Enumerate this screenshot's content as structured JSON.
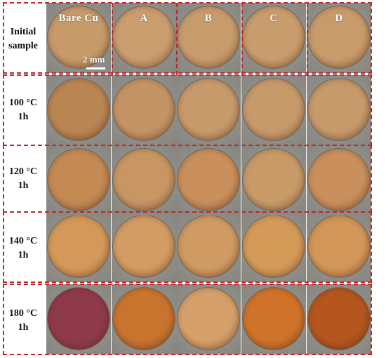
{
  "columns": [
    "Bare Cu",
    "A",
    "B",
    "C",
    "D"
  ],
  "rows": [
    {
      "line1": "Initial",
      "line2": "sample"
    },
    {
      "line1": "100 °C",
      "line2": "1h"
    },
    {
      "line1": "120 °C",
      "line2": "1h"
    },
    {
      "line1": "140 °C",
      "line2": "1h"
    },
    {
      "line1": "180 °C",
      "line2": "1h"
    }
  ],
  "scale_bar": {
    "label": "2 mm"
  },
  "colors": {
    "frame_dash": "#c0262a",
    "background_grey": "#8f8e8a",
    "copper_tones": [
      [
        "#c79a6a",
        "#c99d6e",
        "#c79b6c",
        "#c89c6c",
        "#c89b6b"
      ],
      [
        "#b98653",
        "#c49466",
        "#c79a6b",
        "#c69a6b",
        "#c69a6b"
      ],
      [
        "#c48a54",
        "#c79663",
        "#c98f5c",
        "#c89a68",
        "#c98f5c"
      ],
      [
        "#d4995a",
        "#d29c63",
        "#d09a63",
        "#d49a58",
        "#d29658"
      ],
      [
        "#8e3a4a",
        "#c8742e",
        "#d6a06a",
        "#d0732a",
        "#b5561e"
      ]
    ]
  }
}
